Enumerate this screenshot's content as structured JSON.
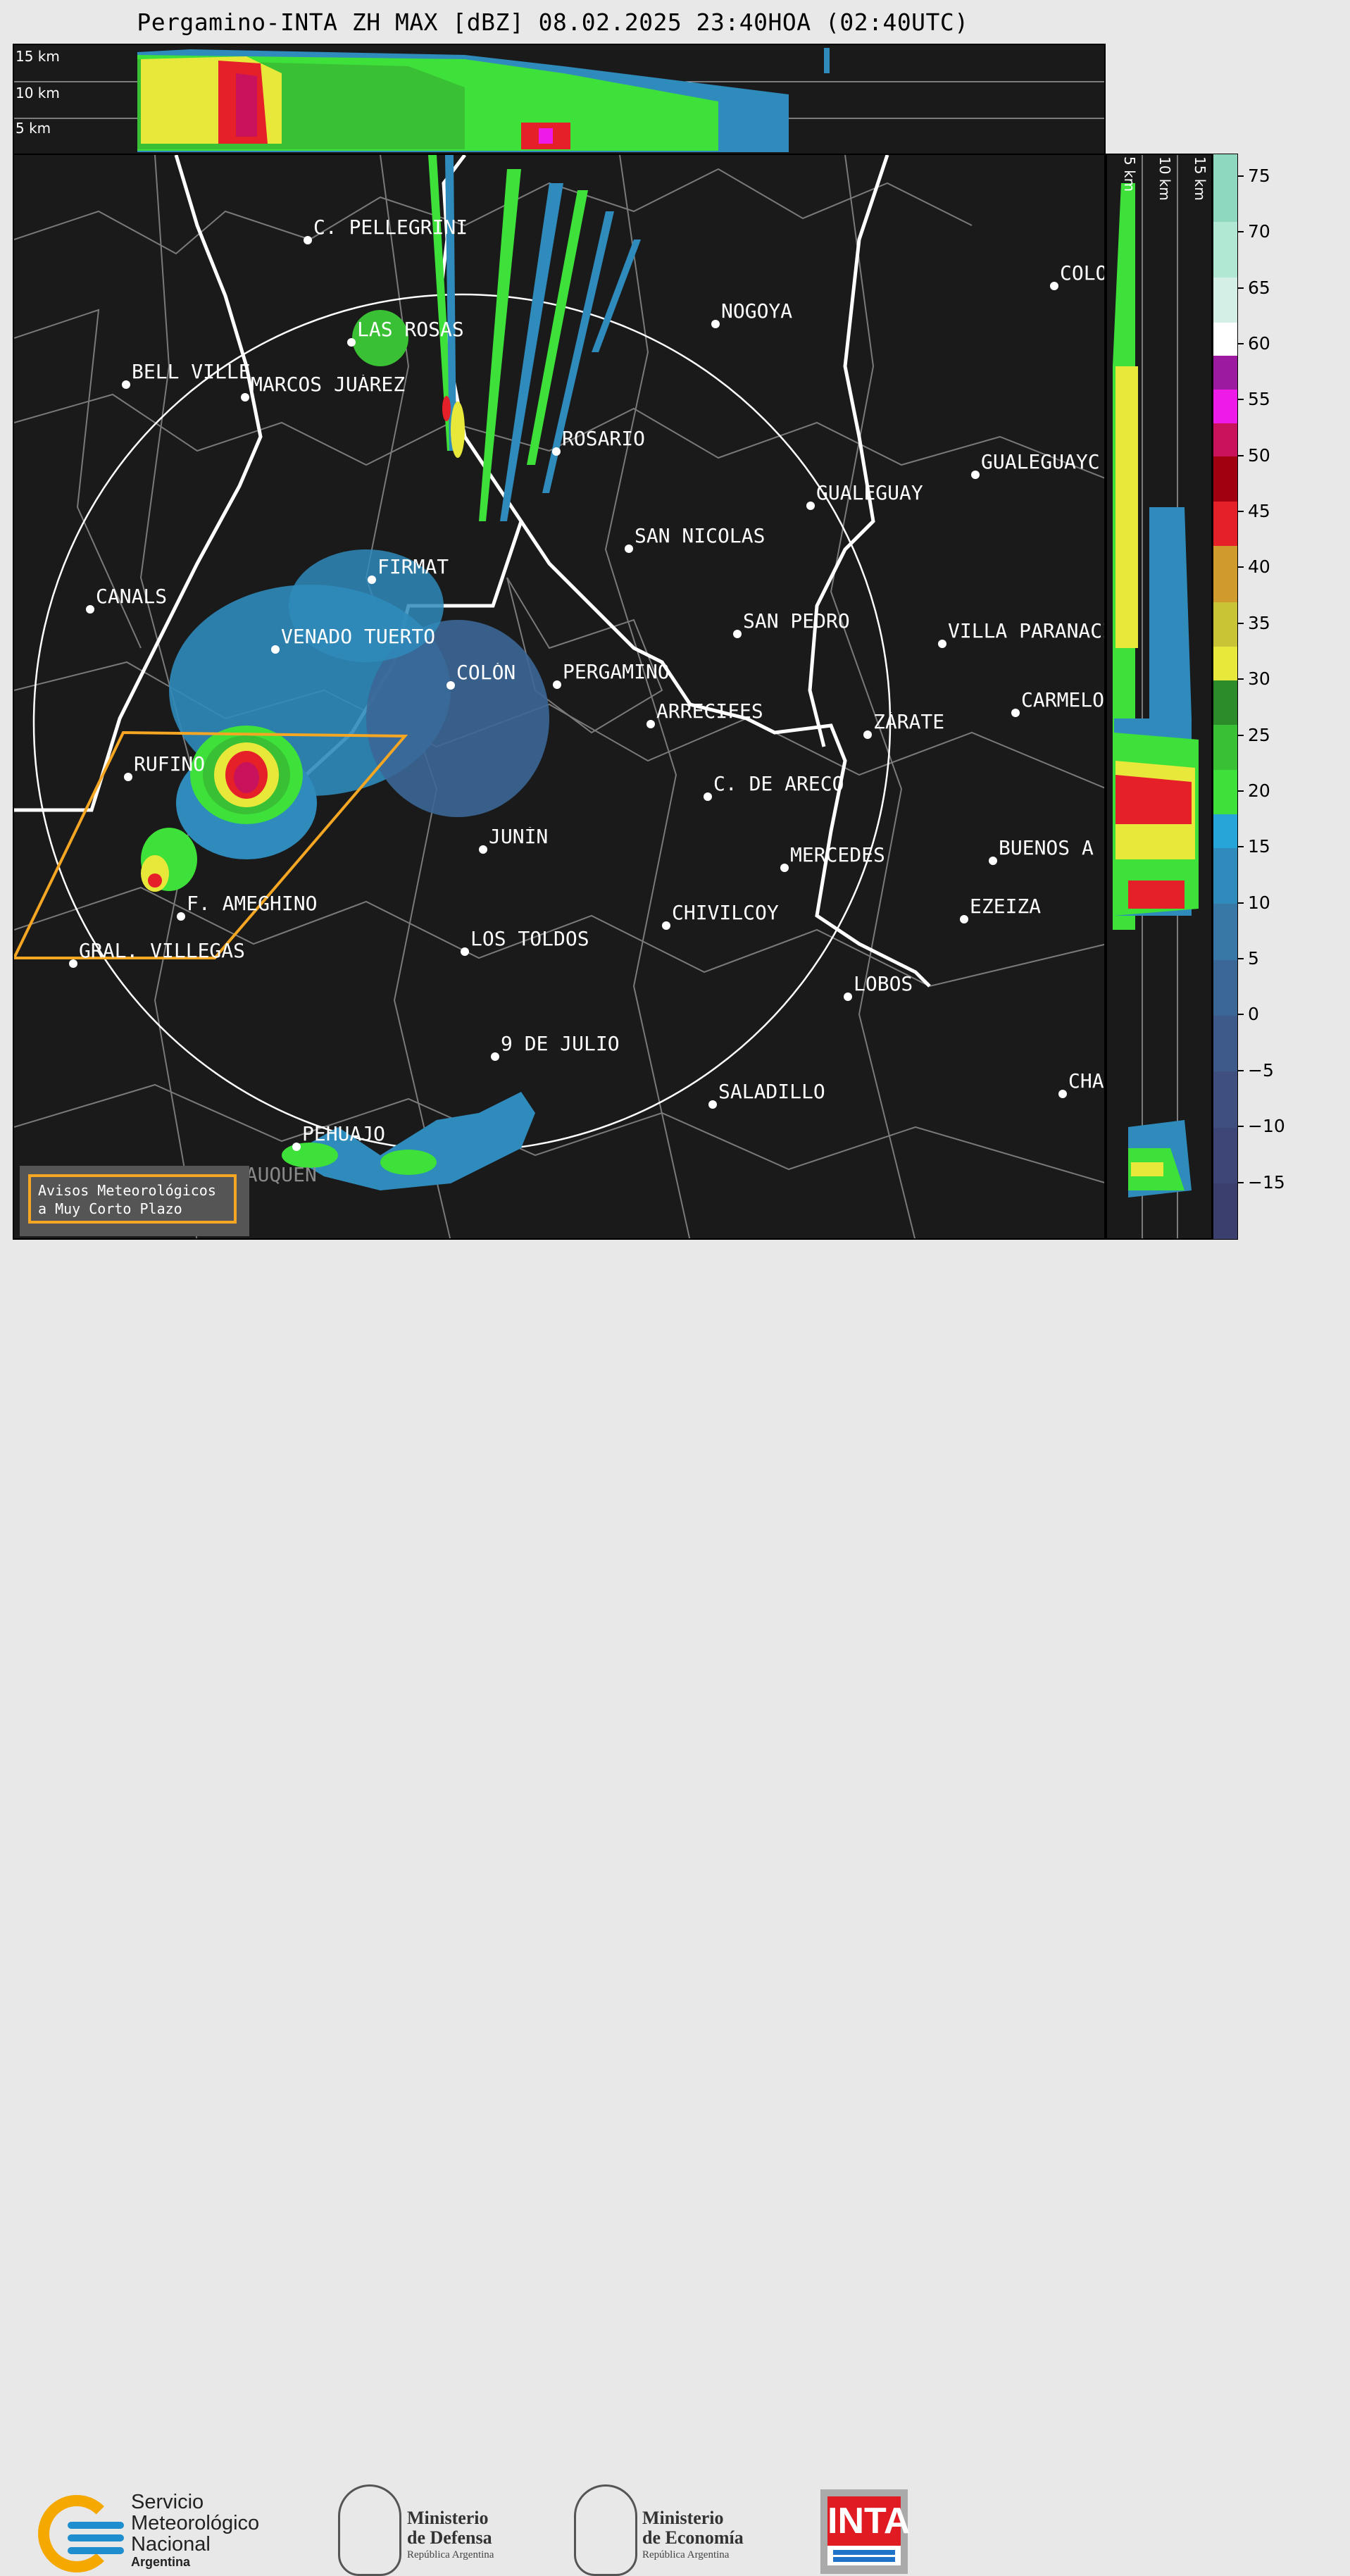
{
  "title": "Pergamino-INTA ZH MAX [dBZ] 08.02.2025 23:40HOA (02:40UTC)",
  "top_panel": {
    "height_labels": [
      "15 km",
      "10 km",
      "5 km"
    ]
  },
  "side_panel": {
    "height_labels": [
      "5 km",
      "10 km",
      "15 km"
    ]
  },
  "cities": [
    {
      "name": "C. PELLEGRINI"
    },
    {
      "name": "LAS ROSAS"
    },
    {
      "name": "NOGOYA"
    },
    {
      "name": "BELL VILLE"
    },
    {
      "name": "MARCOS JUÁREZ"
    },
    {
      "name": "ROSARIO"
    },
    {
      "name": "GUALEGUAY"
    },
    {
      "name": "GUALEGUAYC"
    },
    {
      "name": "COLO"
    },
    {
      "name": "SAN NICOLAS"
    },
    {
      "name": "FIRMAT"
    },
    {
      "name": "CANALS"
    },
    {
      "name": "SAN PEDRO"
    },
    {
      "name": "VILLA PARANACI"
    },
    {
      "name": "VENADO TUERTO"
    },
    {
      "name": "COLÓN"
    },
    {
      "name": "PERGAMINO"
    },
    {
      "name": "CARMELO"
    },
    {
      "name": "ARRECIFES"
    },
    {
      "name": "ZÁRATE"
    },
    {
      "name": "RUFINO"
    },
    {
      "name": "C. DE ARECO"
    },
    {
      "name": "JUNÍN"
    },
    {
      "name": "MERCEDES"
    },
    {
      "name": "BUENOS A"
    },
    {
      "name": "F. AMEGHINO"
    },
    {
      "name": "CHIVILCOY"
    },
    {
      "name": "EZEIZA"
    },
    {
      "name": "LOS TOLDOS"
    },
    {
      "name": "GRAL. VILLEGAS"
    },
    {
      "name": "LOBOS"
    },
    {
      "name": "9 DE JULIO"
    },
    {
      "name": "SALADILLO"
    },
    {
      "name": "CHA"
    },
    {
      "name": "PEHUAJO"
    },
    {
      "name": "TRENQUE LAUQUEN"
    }
  ],
  "warning_box": {
    "line1": "Avisos Meteorológicos",
    "line2": "a Muy Corto Plazo",
    "color": "#f5a623"
  },
  "colorbar": {
    "unit": "dBZ",
    "tick_labels": [
      "75",
      "70",
      "65",
      "60",
      "55",
      "50",
      "45",
      "40",
      "35",
      "30",
      "25",
      "20",
      "15",
      "10",
      "5",
      "0",
      "−5",
      "−10",
      "−15"
    ],
    "segments": [
      {
        "from": -20,
        "to": -15,
        "color": "#3b3f6e"
      },
      {
        "from": -15,
        "to": -10,
        "color": "#3d4676"
      },
      {
        "from": -10,
        "to": -5,
        "color": "#3e4f80"
      },
      {
        "from": -5,
        "to": 0,
        "color": "#3d5a8a"
      },
      {
        "from": 0,
        "to": 5,
        "color": "#3b6796"
      },
      {
        "from": 5,
        "to": 10,
        "color": "#3778a6"
      },
      {
        "from": 10,
        "to": 15,
        "color": "#2f8bbb"
      },
      {
        "from": 15,
        "to": 18,
        "color": "#26a6d8"
      },
      {
        "from": 18,
        "to": 22,
        "color": "#3ee03a"
      },
      {
        "from": 22,
        "to": 26,
        "color": "#39c034"
      },
      {
        "from": 26,
        "to": 30,
        "color": "#2c8c2a"
      },
      {
        "from": 30,
        "to": 33,
        "color": "#e8e83a"
      },
      {
        "from": 33,
        "to": 37,
        "color": "#c8c435"
      },
      {
        "from": 37,
        "to": 42,
        "color": "#d09a2c"
      },
      {
        "from": 42,
        "to": 46,
        "color": "#e52028"
      },
      {
        "from": 46,
        "to": 50,
        "color": "#a00010"
      },
      {
        "from": 50,
        "to": 53,
        "color": "#c8135c"
      },
      {
        "from": 53,
        "to": 56,
        "color": "#ee1ae8"
      },
      {
        "from": 56,
        "to": 59,
        "color": "#9c1aa0"
      },
      {
        "from": 59,
        "to": 62,
        "color": "#ffffff"
      },
      {
        "from": 62,
        "to": 66,
        "color": "#d4f0e6"
      },
      {
        "from": 66,
        "to": 71,
        "color": "#b0e8d4"
      },
      {
        "from": 71,
        "to": 77,
        "color": "#8ed8c0"
      }
    ],
    "min": -20,
    "max": 77
  },
  "logos": {
    "smn": [
      "Servicio",
      "Meteorológico",
      "Nacional",
      "Argentina"
    ],
    "defensa": [
      "Ministerio",
      "de Defensa",
      "República Argentina"
    ],
    "economia": [
      "Ministerio",
      "de Economía",
      "República Argentina"
    ],
    "inta": "INTA"
  }
}
